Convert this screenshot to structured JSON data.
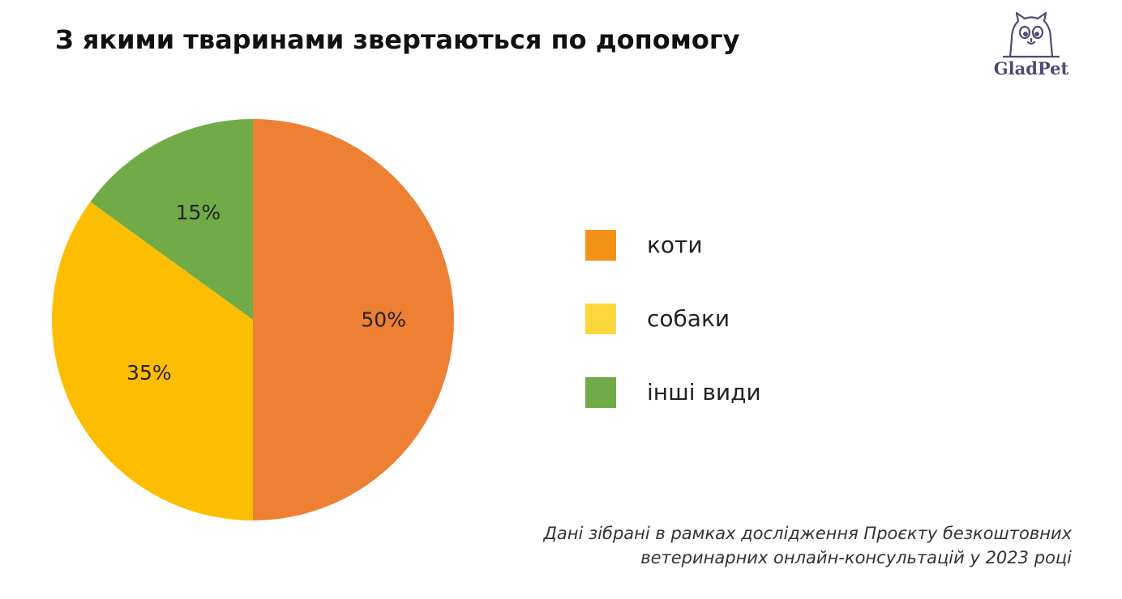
{
  "header": {
    "title": "З якими тваринами звертаються по допомогу"
  },
  "logo": {
    "text": "GladPet",
    "icon": "cat-face-icon",
    "color": "#4e4a73"
  },
  "chart_data": {
    "type": "pie",
    "title": "З якими тваринами звертаються по допомогу",
    "categories": [
      "коти",
      "собаки",
      "інші види"
    ],
    "values": [
      50,
      35,
      15
    ],
    "labels": [
      "50%",
      "35%",
      "15%"
    ],
    "colors": [
      "#ee8033",
      "#fdbd00",
      "#71ab48"
    ],
    "legend": {
      "placement": "right",
      "swatch_colors": [
        "#f39217",
        "#fdd83a",
        "#71ab48"
      ]
    }
  },
  "footnote": {
    "line1": "Дані зібрані в рамках дослідження Проєкту безкоштовних",
    "line2": "ветеринарних онлайн-консультацій у 2023 році"
  }
}
